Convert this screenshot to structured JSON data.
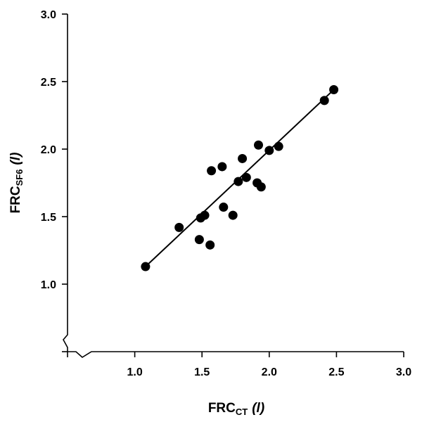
{
  "chart_data": {
    "type": "scatter",
    "title": "",
    "xlabel": {
      "main": "FRC",
      "sub": "CT",
      "unit": "(l)"
    },
    "ylabel": {
      "main": "FRC",
      "sub": "SF6",
      "unit": "(l)"
    },
    "xlim": [
      0.5,
      3.0
    ],
    "ylim": [
      0.5,
      3.0
    ],
    "x_ticks": [
      1.0,
      1.5,
      2.0,
      2.5,
      3.0
    ],
    "x_tick_labels": [
      "1.0",
      "1.5",
      "2.0",
      "2.5",
      "3.0"
    ],
    "y_ticks": [
      1.0,
      1.5,
      2.0,
      2.5,
      3.0
    ],
    "y_tick_labels": [
      "1.0",
      "1.5",
      "2.0",
      "2.5",
      "3.0"
    ],
    "axis_break": true,
    "grid": false,
    "legend": "none",
    "series": [
      {
        "points": [
          [
            1.08,
            1.13
          ],
          [
            1.33,
            1.42
          ],
          [
            1.48,
            1.33
          ],
          [
            1.49,
            1.49
          ],
          [
            1.52,
            1.51
          ],
          [
            1.56,
            1.29
          ],
          [
            1.57,
            1.84
          ],
          [
            1.65,
            1.87
          ],
          [
            1.66,
            1.57
          ],
          [
            1.73,
            1.51
          ],
          [
            1.77,
            1.76
          ],
          [
            1.8,
            1.93
          ],
          [
            1.83,
            1.79
          ],
          [
            1.92,
            2.03
          ],
          [
            1.91,
            1.75
          ],
          [
            1.94,
            1.72
          ],
          [
            2.0,
            1.99
          ],
          [
            2.07,
            2.02
          ],
          [
            2.41,
            2.36
          ],
          [
            2.48,
            2.44
          ]
        ]
      }
    ],
    "regression_line": {
      "x": [
        1.08,
        2.48
      ],
      "y": [
        1.13,
        2.44
      ]
    },
    "marker_color": "#000000",
    "line_color": "#000000"
  }
}
